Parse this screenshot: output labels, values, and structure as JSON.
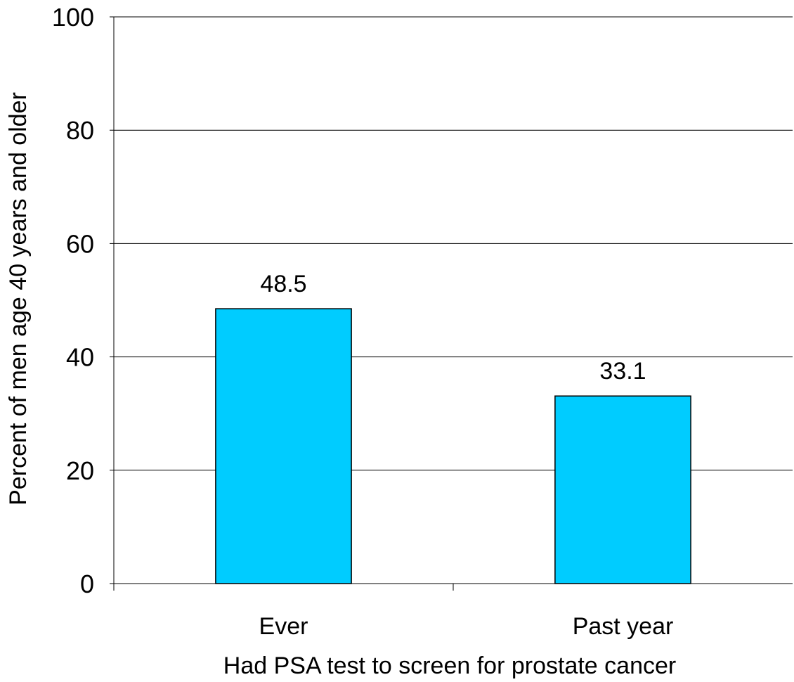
{
  "chart_data": {
    "type": "bar",
    "categories": [
      "Ever",
      "Past year"
    ],
    "values": [
      48.5,
      33.1
    ],
    "value_labels": [
      "48.5",
      "33.1"
    ],
    "xlabel": "Had PSA test to screen for prostate cancer",
    "ylabel": "Percent of men age 40 years and older",
    "ylim": [
      0,
      100
    ],
    "yticks": [
      0,
      20,
      40,
      60,
      80,
      100
    ],
    "ytick_labels": [
      "0",
      "20",
      "40",
      "60",
      "80",
      "100"
    ],
    "grid": true,
    "legend": "none",
    "colors": {
      "bar_fill": "#00ccff",
      "bar_stroke": "#000000",
      "gridline": "#000000",
      "axis": "#000000",
      "background": "#ffffff"
    }
  }
}
